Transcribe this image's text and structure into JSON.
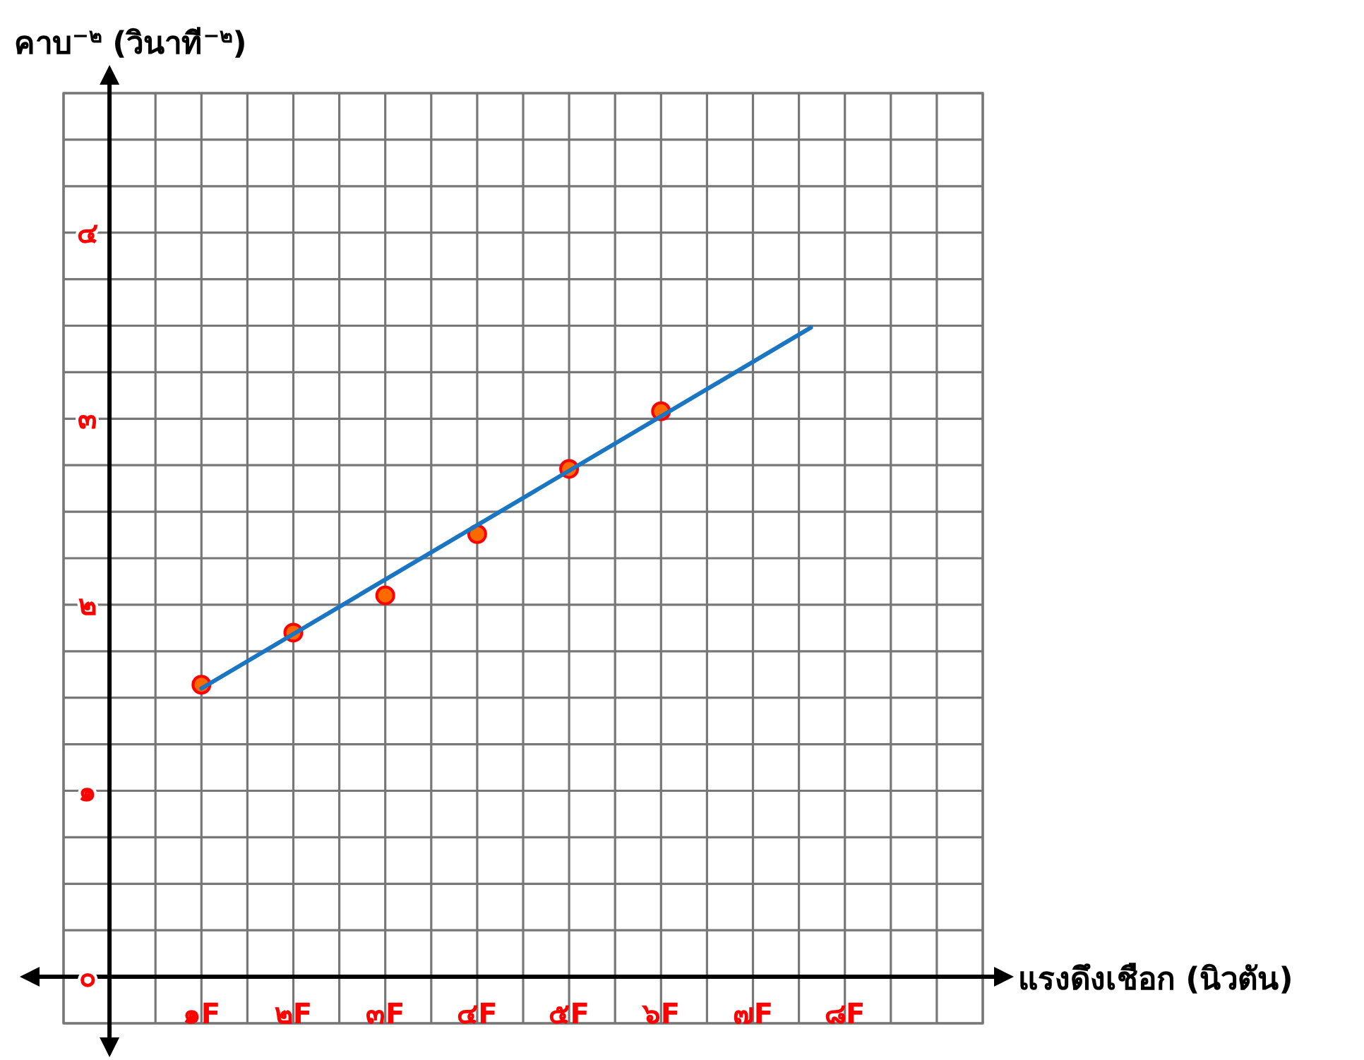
{
  "chart_data": {
    "type": "scatter",
    "ylabel": "คาบ$^{−๒}$ (วินาที$^{−๒}$)",
    "xlabel": "แรงดึงเชือก (นิวตัน)",
    "xlim": [
      -0.5,
      9.5
    ],
    "ylim": [
      -0.25,
      4.75
    ],
    "xticks": [
      {
        "value": -0.5,
        "label": null
      },
      {
        "value": 0,
        "label": null
      },
      {
        "value": 0.5,
        "label": null
      },
      {
        "value": 1,
        "label": "๑F"
      },
      {
        "value": 1.5,
        "label": null
      },
      {
        "value": 2,
        "label": "๒F"
      },
      {
        "value": 2.5,
        "label": null
      },
      {
        "value": 3,
        "label": "๓F"
      },
      {
        "value": 3.5,
        "label": null
      },
      {
        "value": 4,
        "label": "๔F"
      },
      {
        "value": 4.5,
        "label": null
      },
      {
        "value": 5,
        "label": "๕F"
      },
      {
        "value": 5.5,
        "label": null
      },
      {
        "value": 6,
        "label": "๖F"
      },
      {
        "value": 6.5,
        "label": null
      },
      {
        "value": 7,
        "label": "๗F"
      },
      {
        "value": 7.5,
        "label": null
      },
      {
        "value": 8,
        "label": "๘F"
      },
      {
        "value": 8.5,
        "label": null
      },
      {
        "value": 9,
        "label": null
      },
      {
        "value": 9.5,
        "label": null
      }
    ],
    "yticks": [
      {
        "value": -0.25,
        "label": null
      },
      {
        "value": 0,
        "label": "๐"
      },
      {
        "value": 0.25,
        "label": null
      },
      {
        "value": 0.5,
        "label": null
      },
      {
        "value": 0.75,
        "label": null
      },
      {
        "value": 1,
        "label": "๑"
      },
      {
        "value": 1.25,
        "label": null
      },
      {
        "value": 1.5,
        "label": null
      },
      {
        "value": 1.75,
        "label": null
      },
      {
        "value": 2,
        "label": "๒"
      },
      {
        "value": 2.25,
        "label": null
      },
      {
        "value": 2.5,
        "label": null
      },
      {
        "value": 2.75,
        "label": null
      },
      {
        "value": 3,
        "label": "๓"
      },
      {
        "value": 3.25,
        "label": null
      },
      {
        "value": 3.5,
        "label": null
      },
      {
        "value": 3.75,
        "label": null
      },
      {
        "value": 4,
        "label": "๔"
      },
      {
        "value": 4.25,
        "label": null
      },
      {
        "value": 4.5,
        "label": null
      },
      {
        "value": 4.75,
        "label": null
      }
    ],
    "grid": true,
    "series": [
      {
        "type": "scatter",
        "color": "#ff6a00",
        "marker": "circle",
        "x": [
          1,
          2,
          3,
          4,
          5,
          6
        ],
        "values": [
          1.57,
          1.85,
          2.05,
          2.38,
          2.73,
          3.04
        ]
      },
      {
        "type": "line",
        "color": "#1a75c2",
        "line_style": "solid",
        "x": [
          1,
          7.63
        ],
        "values": [
          1.55,
          3.49
        ]
      }
    ]
  }
}
